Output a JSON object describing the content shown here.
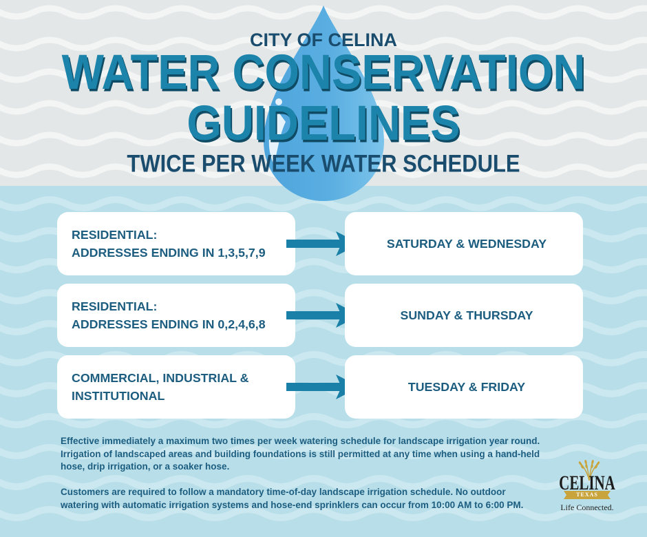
{
  "header": {
    "city": "CITY OF CELINA",
    "title_line1": "WATER CONSERVATION",
    "title_line2": "GUIDELINES",
    "subtitle": "TWICE PER WEEK WATER SCHEDULE"
  },
  "schedule": [
    {
      "group_lines": [
        "RESIDENTIAL:",
        "ADDRESSES ENDING IN 1,3,5,7,9"
      ],
      "days": "SATURDAY & WEDNESDAY"
    },
    {
      "group_lines": [
        "RESIDENTIAL:",
        "ADDRESSES ENDING IN 0,2,4,6,8"
      ],
      "days": "SUNDAY & THURSDAY"
    },
    {
      "group_lines": [
        "COMMERCIAL, INDUSTRIAL &",
        "INSTITUTIONAL"
      ],
      "days": "TUESDAY & FRIDAY"
    }
  ],
  "notes": [
    {
      "lines": [
        "Effective immediately a maximum two times per week watering schedule for landscape irrigation year round.",
        "Irrigation of landscaped areas and building foundations is still permitted at any time when using a hand-held",
        "hose, drip irrigation, or a soaker hose."
      ]
    },
    {
      "lines": [
        "Customers are required to follow a mandatory time-of-day landscape irrigation schedule. No outdoor",
        "watering with automatic irrigation systems and hose-end sprinklers can occur from 10:00 AM to 6:00 PM."
      ]
    }
  ],
  "logo": {
    "name": "CELINA",
    "state": "TEXAS",
    "tagline": "Life Connected."
  },
  "icons": {
    "decoration": "water-drop-icon",
    "schedule_connector": "arrow-right-icon",
    "logo_mark": "wheat-icon"
  },
  "colors": {
    "top_background": "#e4e7e7",
    "top_wave": "#f3f5f5",
    "bottom_background": "#b8dfe9",
    "bottom_wave": "#cbe8f0",
    "title": "#1c84ab",
    "title_shadow": "#0f4b64",
    "heading_dark": "#1a4c6e",
    "body_text": "#1c5d80",
    "arrow": "#1b80a7",
    "drop": "#5aaee1",
    "logo_gold": "#c9a43c"
  }
}
